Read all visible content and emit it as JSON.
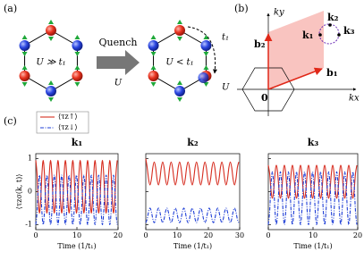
{
  "figure": {
    "panel_a": {
      "label": "(a)",
      "left_text": "U ≫ t₁",
      "right_text": "U < t₁",
      "arrow_top": "Quench",
      "arrow_bottom": "U",
      "hop_label": "t₁",
      "onsite_label": "U"
    },
    "panel_b": {
      "label": "(b)",
      "ky": "ky",
      "kx": "kx",
      "b1": "b₁",
      "b2": "b₂",
      "origin": "0",
      "k1": "k₁",
      "k2": "k₂",
      "k3": "k₃"
    },
    "panel_c": {
      "label": "(c)"
    }
  },
  "chart_data": [
    {
      "type": "line",
      "title": "k₁",
      "xlabel": "Time (1/t₁)",
      "ylabel": "⟨τzσ(k, t)⟩",
      "legend": "upper left",
      "x": [
        0,
        0.3,
        0.6,
        0.9,
        1.2,
        1.5,
        1.8,
        2.1,
        2.4,
        2.7,
        3,
        3.3,
        3.6,
        3.9,
        4.2,
        4.5,
        4.8,
        5.1,
        5.4,
        5.7,
        6,
        6.3,
        6.6,
        6.9,
        7.2,
        7.5,
        7.8,
        8.1,
        8.4,
        8.7,
        9,
        9.3,
        9.6,
        9.9,
        10.2,
        10.5,
        10.8,
        11.1,
        11.4,
        11.7,
        12,
        12.3,
        12.6,
        12.9,
        13.2,
        13.5,
        13.8,
        14.1,
        14.4,
        14.7,
        15,
        15.3,
        15.6,
        15.9,
        16.2,
        16.5,
        16.8,
        17.1,
        17.4,
        17.7,
        18,
        18.3,
        18.6,
        18.9,
        19.2,
        19.5,
        19.8
      ],
      "series": [
        {
          "name": "⟨τz↑⟩",
          "color": "#d62d20",
          "style": "solid",
          "values": [
            0.95,
            0.55,
            -0.25,
            -0.65,
            -0.25,
            0.55,
            0.95,
            0.55,
            -0.25,
            -0.65,
            -0.25,
            0.55,
            0.95,
            0.55,
            -0.25,
            -0.65,
            -0.25,
            0.55,
            0.95,
            0.55,
            -0.25,
            -0.65,
            -0.25,
            0.55,
            0.95,
            0.55,
            -0.25,
            -0.65,
            -0.25,
            0.55,
            0.95,
            0.55,
            -0.25,
            -0.65,
            -0.25,
            0.55,
            0.95,
            0.55,
            -0.25,
            -0.65,
            -0.25,
            0.55,
            0.95,
            0.55,
            -0.25,
            -0.65,
            -0.25,
            0.55,
            0.95,
            0.55,
            -0.25,
            -0.65,
            -0.25,
            0.55,
            0.95,
            0.55,
            -0.25,
            -0.65,
            -0.25,
            0.55,
            0.95,
            0.55,
            -0.25,
            -0.65,
            -0.25,
            0.55,
            0.95
          ]
        },
        {
          "name": "⟨τz↓⟩",
          "color": "#1f3fd6",
          "style": "dashdot",
          "values": [
            -1,
            -0.63,
            0.13,
            0.5,
            0.13,
            -0.63,
            -1,
            -0.63,
            0.13,
            0.5,
            0.13,
            -0.63,
            -1,
            -0.63,
            0.13,
            0.5,
            0.13,
            -0.63,
            -1,
            -0.63,
            0.13,
            0.5,
            0.13,
            -0.63,
            -1,
            -0.63,
            0.13,
            0.5,
            0.13,
            -0.63,
            -1,
            -0.63,
            0.13,
            0.5,
            0.13,
            -0.63,
            -1,
            -0.63,
            0.13,
            0.5,
            0.13,
            -0.63,
            -1,
            -0.63,
            0.13,
            0.5,
            0.13,
            -0.63,
            -1,
            -0.63,
            0.13,
            0.5,
            0.13,
            -0.63,
            -1,
            -0.63,
            0.13,
            0.5,
            0.13,
            -0.63,
            -1,
            -0.63,
            0.13,
            0.5,
            0.13,
            -0.63,
            -1
          ]
        }
      ],
      "xlim": [
        0,
        20
      ],
      "xticks": [
        0,
        10,
        20
      ],
      "ylim": [
        -1.15,
        1.15
      ],
      "yticks": [
        -1,
        0,
        1
      ]
    },
    {
      "type": "line",
      "title": "k₂",
      "xlabel": "Time (1/t₁)",
      "x": [
        0,
        0.45,
        0.9,
        1.35,
        1.8,
        2.25,
        2.7,
        3.15,
        3.6,
        4.05,
        4.5,
        4.95,
        5.4,
        5.85,
        6.3,
        6.75,
        7.2,
        7.65,
        8.1,
        8.55,
        9,
        9.45,
        9.9,
        10.35,
        10.8,
        11.25,
        11.7,
        12.15,
        12.6,
        13.05,
        13.5,
        13.95,
        14.4,
        14.85,
        15.3,
        15.75,
        16.2,
        16.65,
        17.1,
        17.55,
        18,
        18.45,
        18.9,
        19.35,
        19.8,
        20.25,
        20.7,
        21.15,
        21.6,
        22.05,
        22.5,
        22.95,
        23.4,
        23.85,
        24.3,
        24.75,
        25.2,
        25.65,
        26.1,
        26.55,
        27,
        27.45,
        27.9,
        28.35,
        28.8,
        29.25,
        29.7
      ],
      "series": [
        {
          "color": "#d62d20",
          "style": "solid",
          "values": [
            1,
            0.73,
            0.38,
            0.2,
            0.38,
            0.73,
            0.9,
            0.73,
            0.38,
            0.2,
            0.38,
            0.73,
            0.9,
            0.73,
            0.38,
            0.2,
            0.38,
            0.73,
            0.9,
            0.73,
            0.38,
            0.2,
            0.38,
            0.73,
            0.9,
            0.73,
            0.38,
            0.2,
            0.38,
            0.73,
            0.9,
            0.73,
            0.38,
            0.2,
            0.38,
            0.73,
            0.9,
            0.73,
            0.38,
            0.2,
            0.38,
            0.73,
            0.9,
            0.73,
            0.38,
            0.2,
            0.38,
            0.73,
            0.9,
            0.73,
            0.38,
            0.2,
            0.38,
            0.73,
            0.9,
            0.73,
            0.38,
            0.2,
            0.38,
            0.73,
            0.9,
            0.73,
            0.38,
            0.2,
            0.38,
            0.73,
            0.9
          ]
        },
        {
          "color": "#1f3fd6",
          "style": "dashdot",
          "values": [
            -0.94,
            -0.83,
            -0.61,
            -0.5,
            -0.61,
            -0.83,
            -0.94,
            -0.83,
            -0.61,
            -0.5,
            -0.61,
            -0.83,
            -0.94,
            -0.83,
            -0.61,
            -0.5,
            -0.61,
            -0.83,
            -0.94,
            -0.83,
            -0.61,
            -0.5,
            -0.61,
            -0.83,
            -0.94,
            -0.83,
            -0.61,
            -0.5,
            -0.61,
            -0.83,
            -0.94,
            -0.83,
            -0.61,
            -0.5,
            -0.61,
            -0.83,
            -0.94,
            -0.83,
            -0.61,
            -0.5,
            -0.61,
            -0.83,
            -0.94,
            -0.83,
            -0.61,
            -0.5,
            -0.61,
            -0.83,
            -0.94,
            -0.83,
            -0.61,
            -0.5,
            -0.61,
            -0.83,
            -0.94,
            -0.83,
            -0.61,
            -0.5,
            -0.61,
            -0.83,
            -0.94,
            -0.83,
            -0.61,
            -0.5,
            -0.61,
            -0.83,
            -0.94
          ]
        }
      ],
      "xlim": [
        0,
        30
      ],
      "xticks": [
        0,
        10,
        20,
        30
      ],
      "ylim": [
        -1.15,
        1.15
      ],
      "yticks": [
        -1,
        0,
        1
      ]
    },
    {
      "type": "line",
      "title": "k₃",
      "xlabel": "Time (1/t₁)",
      "x": [
        0,
        0.3,
        0.6,
        0.9,
        1.2,
        1.5,
        1.8,
        2.1,
        2.4,
        2.7,
        3,
        3.3,
        3.6,
        3.9,
        4.2,
        4.5,
        4.8,
        5.1,
        5.4,
        5.7,
        6,
        6.3,
        6.6,
        6.9,
        7.2,
        7.5,
        7.8,
        8.1,
        8.4,
        8.7,
        9,
        9.3,
        9.6,
        9.9,
        10.2,
        10.5,
        10.8,
        11.1,
        11.4,
        11.7,
        12,
        12.3,
        12.6,
        12.9,
        13.2,
        13.5,
        13.8,
        14.1,
        14.4,
        14.7,
        15,
        15.3,
        15.6,
        15.9,
        16.2,
        16.5,
        16.8,
        17.1,
        17.4,
        17.7,
        18,
        18.3,
        18.6,
        18.9,
        19.2,
        19.5,
        19.8
      ],
      "series": [
        {
          "color": "#d62d20",
          "style": "solid",
          "values": [
            0.8,
            0.55,
            0.05,
            -0.2,
            0.05,
            0.55,
            0.8,
            0.55,
            0.05,
            -0.2,
            0.05,
            0.55,
            0.8,
            0.55,
            0.05,
            -0.2,
            0.05,
            0.55,
            0.8,
            0.55,
            0.05,
            -0.2,
            0.05,
            0.55,
            0.8,
            0.55,
            0.05,
            -0.2,
            0.05,
            0.55,
            0.8,
            0.55,
            0.05,
            -0.2,
            0.05,
            0.55,
            0.8,
            0.55,
            0.05,
            -0.2,
            0.05,
            0.55,
            0.8,
            0.55,
            0.05,
            -0.2,
            0.05,
            0.55,
            0.8,
            0.55,
            0.05,
            -0.2,
            0.05,
            0.55,
            0.8,
            0.55,
            0.05,
            -0.2,
            0.05,
            0.55,
            0.8,
            0.55,
            0.05,
            -0.2,
            0.05,
            0.55,
            0.8
          ]
        },
        {
          "color": "#1f3fd6",
          "style": "dashdot",
          "values": [
            -1,
            -0.6,
            0.2,
            0.6,
            0.2,
            -0.6,
            -1,
            -0.6,
            0.2,
            0.6,
            0.2,
            -0.6,
            -1,
            -0.6,
            0.2,
            0.6,
            0.2,
            -0.6,
            -1,
            -0.6,
            0.2,
            0.6,
            0.2,
            -0.6,
            -1,
            -0.6,
            0.2,
            0.6,
            0.2,
            -0.6,
            -1,
            -0.6,
            0.2,
            0.6,
            0.2,
            -0.6,
            -1,
            -0.6,
            0.2,
            0.6,
            0.2,
            -0.6,
            -1,
            -0.6,
            0.2,
            0.6,
            0.2,
            -0.6,
            -1,
            -0.6,
            0.2,
            0.6,
            0.2,
            -0.6,
            -1,
            -0.6,
            0.2,
            0.6,
            0.2,
            -0.6,
            -1,
            -0.6,
            0.2,
            0.6,
            0.2,
            -0.6,
            -1
          ]
        }
      ],
      "xlim": [
        0,
        20
      ],
      "xticks": [
        0,
        10,
        20
      ],
      "ylim": [
        -1.15,
        1.15
      ],
      "yticks": [
        -1,
        0,
        1
      ]
    }
  ]
}
